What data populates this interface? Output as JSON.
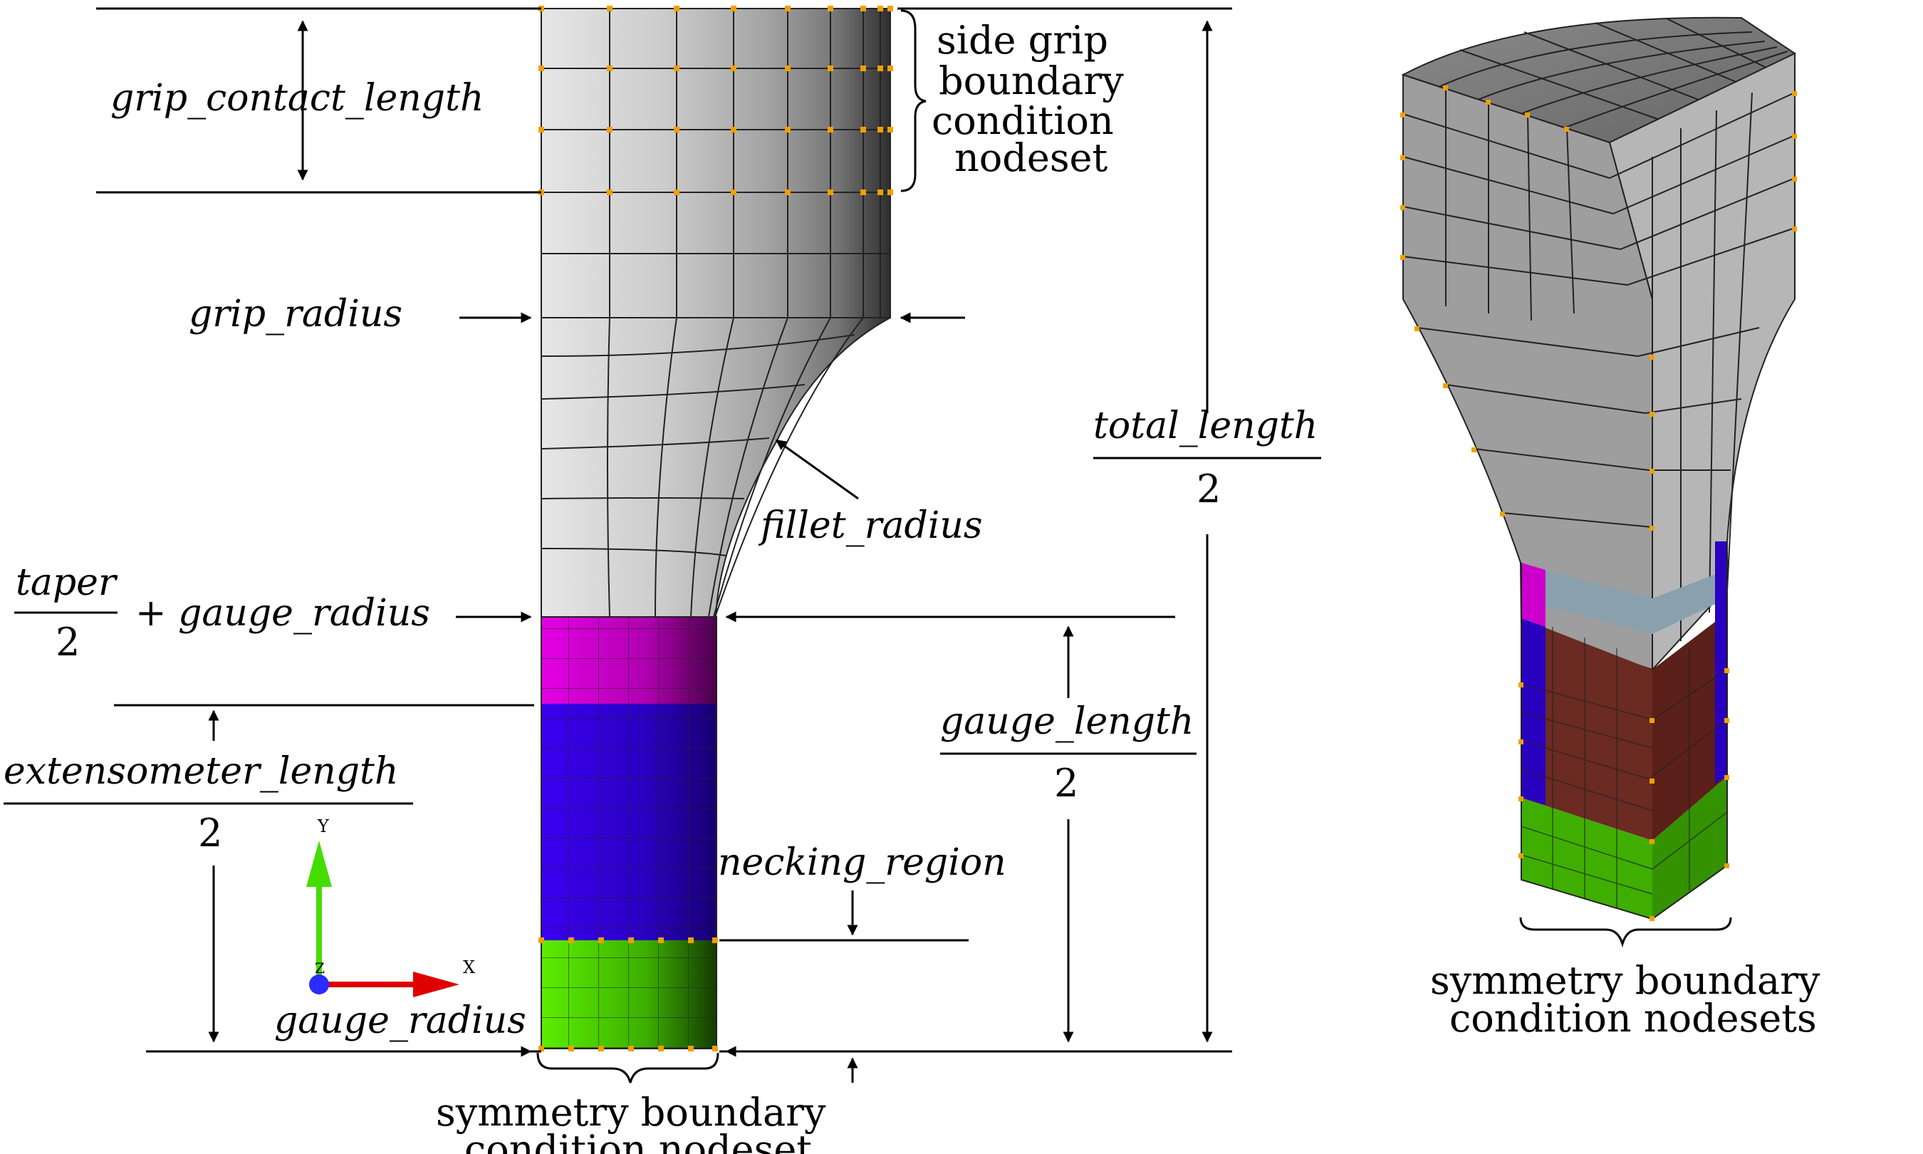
{
  "labels": {
    "grip_contact_length": "grip_contact_length",
    "side_grip_line1": "side grip",
    "side_grip_line2": "boundary",
    "side_grip_line3": "condition",
    "side_grip_line4": "nodeset",
    "grip_radius": "grip_radius",
    "fillet_radius": "fillet_radius",
    "total_length_num": "total_length",
    "total_length_den": "2",
    "taper_num": "taper",
    "taper_den": "2",
    "plus_gauge_radius": "+ gauge_radius",
    "extensometer_num": "extensometer_length",
    "extensometer_den": "2",
    "gauge_length_num": "gauge_length",
    "gauge_length_den": "2",
    "necking_region": "necking_region",
    "gauge_radius": "gauge_radius",
    "sym_left_line1": "symmetry boundary",
    "sym_left_line2": "condition nodeset",
    "sym_right_line1": "symmetry boundary",
    "sym_right_line2": "condition nodesets",
    "axis_y": "Y",
    "axis_x": "X",
    "axis_z": "Z"
  },
  "colors": {
    "mesh_light": "#e2e2e2",
    "mesh_dark": "#3a3a3a",
    "magenta": "#e000e0",
    "blue": "#3300ee",
    "green": "#55e600",
    "node": "#f0a000",
    "brown": "#6b2a22",
    "steel": "#8aa0ad",
    "axis_x": "#e00000",
    "axis_y": "#44dd00",
    "axis_z": "#2b2bff"
  }
}
